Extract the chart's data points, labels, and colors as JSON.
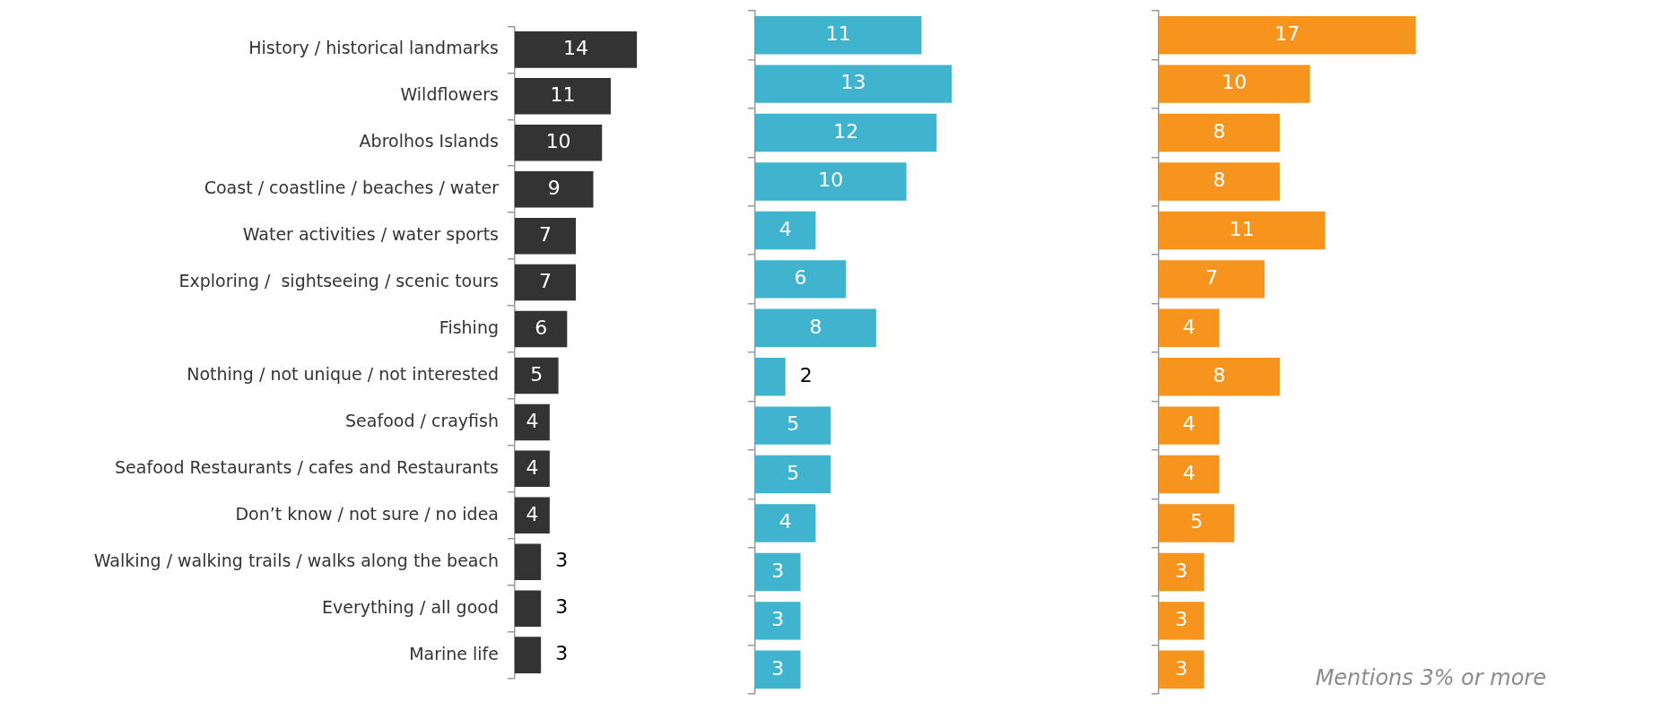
{
  "chart_data": [
    {
      "type": "bar",
      "orientation": "horizontal",
      "categories": [
        "History / historical landmarks",
        "Wildflowers",
        "Abrolhos Islands",
        "Coast / coastline / beaches / water",
        "Water activities / water sports",
        "Exploring /  sightseeing / scenic tours",
        "Fishing",
        "Nothing / not unique / not interested",
        "Seafood / crayfish",
        "Seafood Restaurants / cafes and Restaurants",
        "Don’t know / not sure / no idea",
        "Walking / walking trails / walks along the beach",
        "Everything / all good",
        "Marine life"
      ],
      "values": [
        14,
        11,
        10,
        9,
        7,
        7,
        6,
        5,
        4,
        4,
        4,
        3,
        3,
        3
      ],
      "color": "#333333",
      "data_labels": true,
      "tick_labels": "y"
    },
    {
      "type": "bar",
      "orientation": "horizontal",
      "categories": [
        null,
        null,
        null,
        null,
        null,
        null,
        null,
        null,
        null,
        null,
        null,
        null,
        null,
        null
      ],
      "values": [
        11,
        13,
        12,
        10,
        4,
        6,
        8,
        2,
        5,
        5,
        4,
        3,
        3,
        3
      ],
      "color": "#40b3cf",
      "data_labels": true,
      "tick_labels": false
    },
    {
      "type": "bar",
      "orientation": "horizontal",
      "categories": [
        null,
        null,
        null,
        null,
        null,
        null,
        null,
        null,
        null,
        null,
        null,
        null,
        null,
        null
      ],
      "values": [
        17,
        10,
        8,
        8,
        11,
        7,
        4,
        8,
        4,
        4,
        5,
        3,
        3,
        3
      ],
      "color": "#f7941d",
      "data_labels": true,
      "tick_labels": false,
      "annotations": [
        "Mentions 3% or more"
      ]
    }
  ]
}
